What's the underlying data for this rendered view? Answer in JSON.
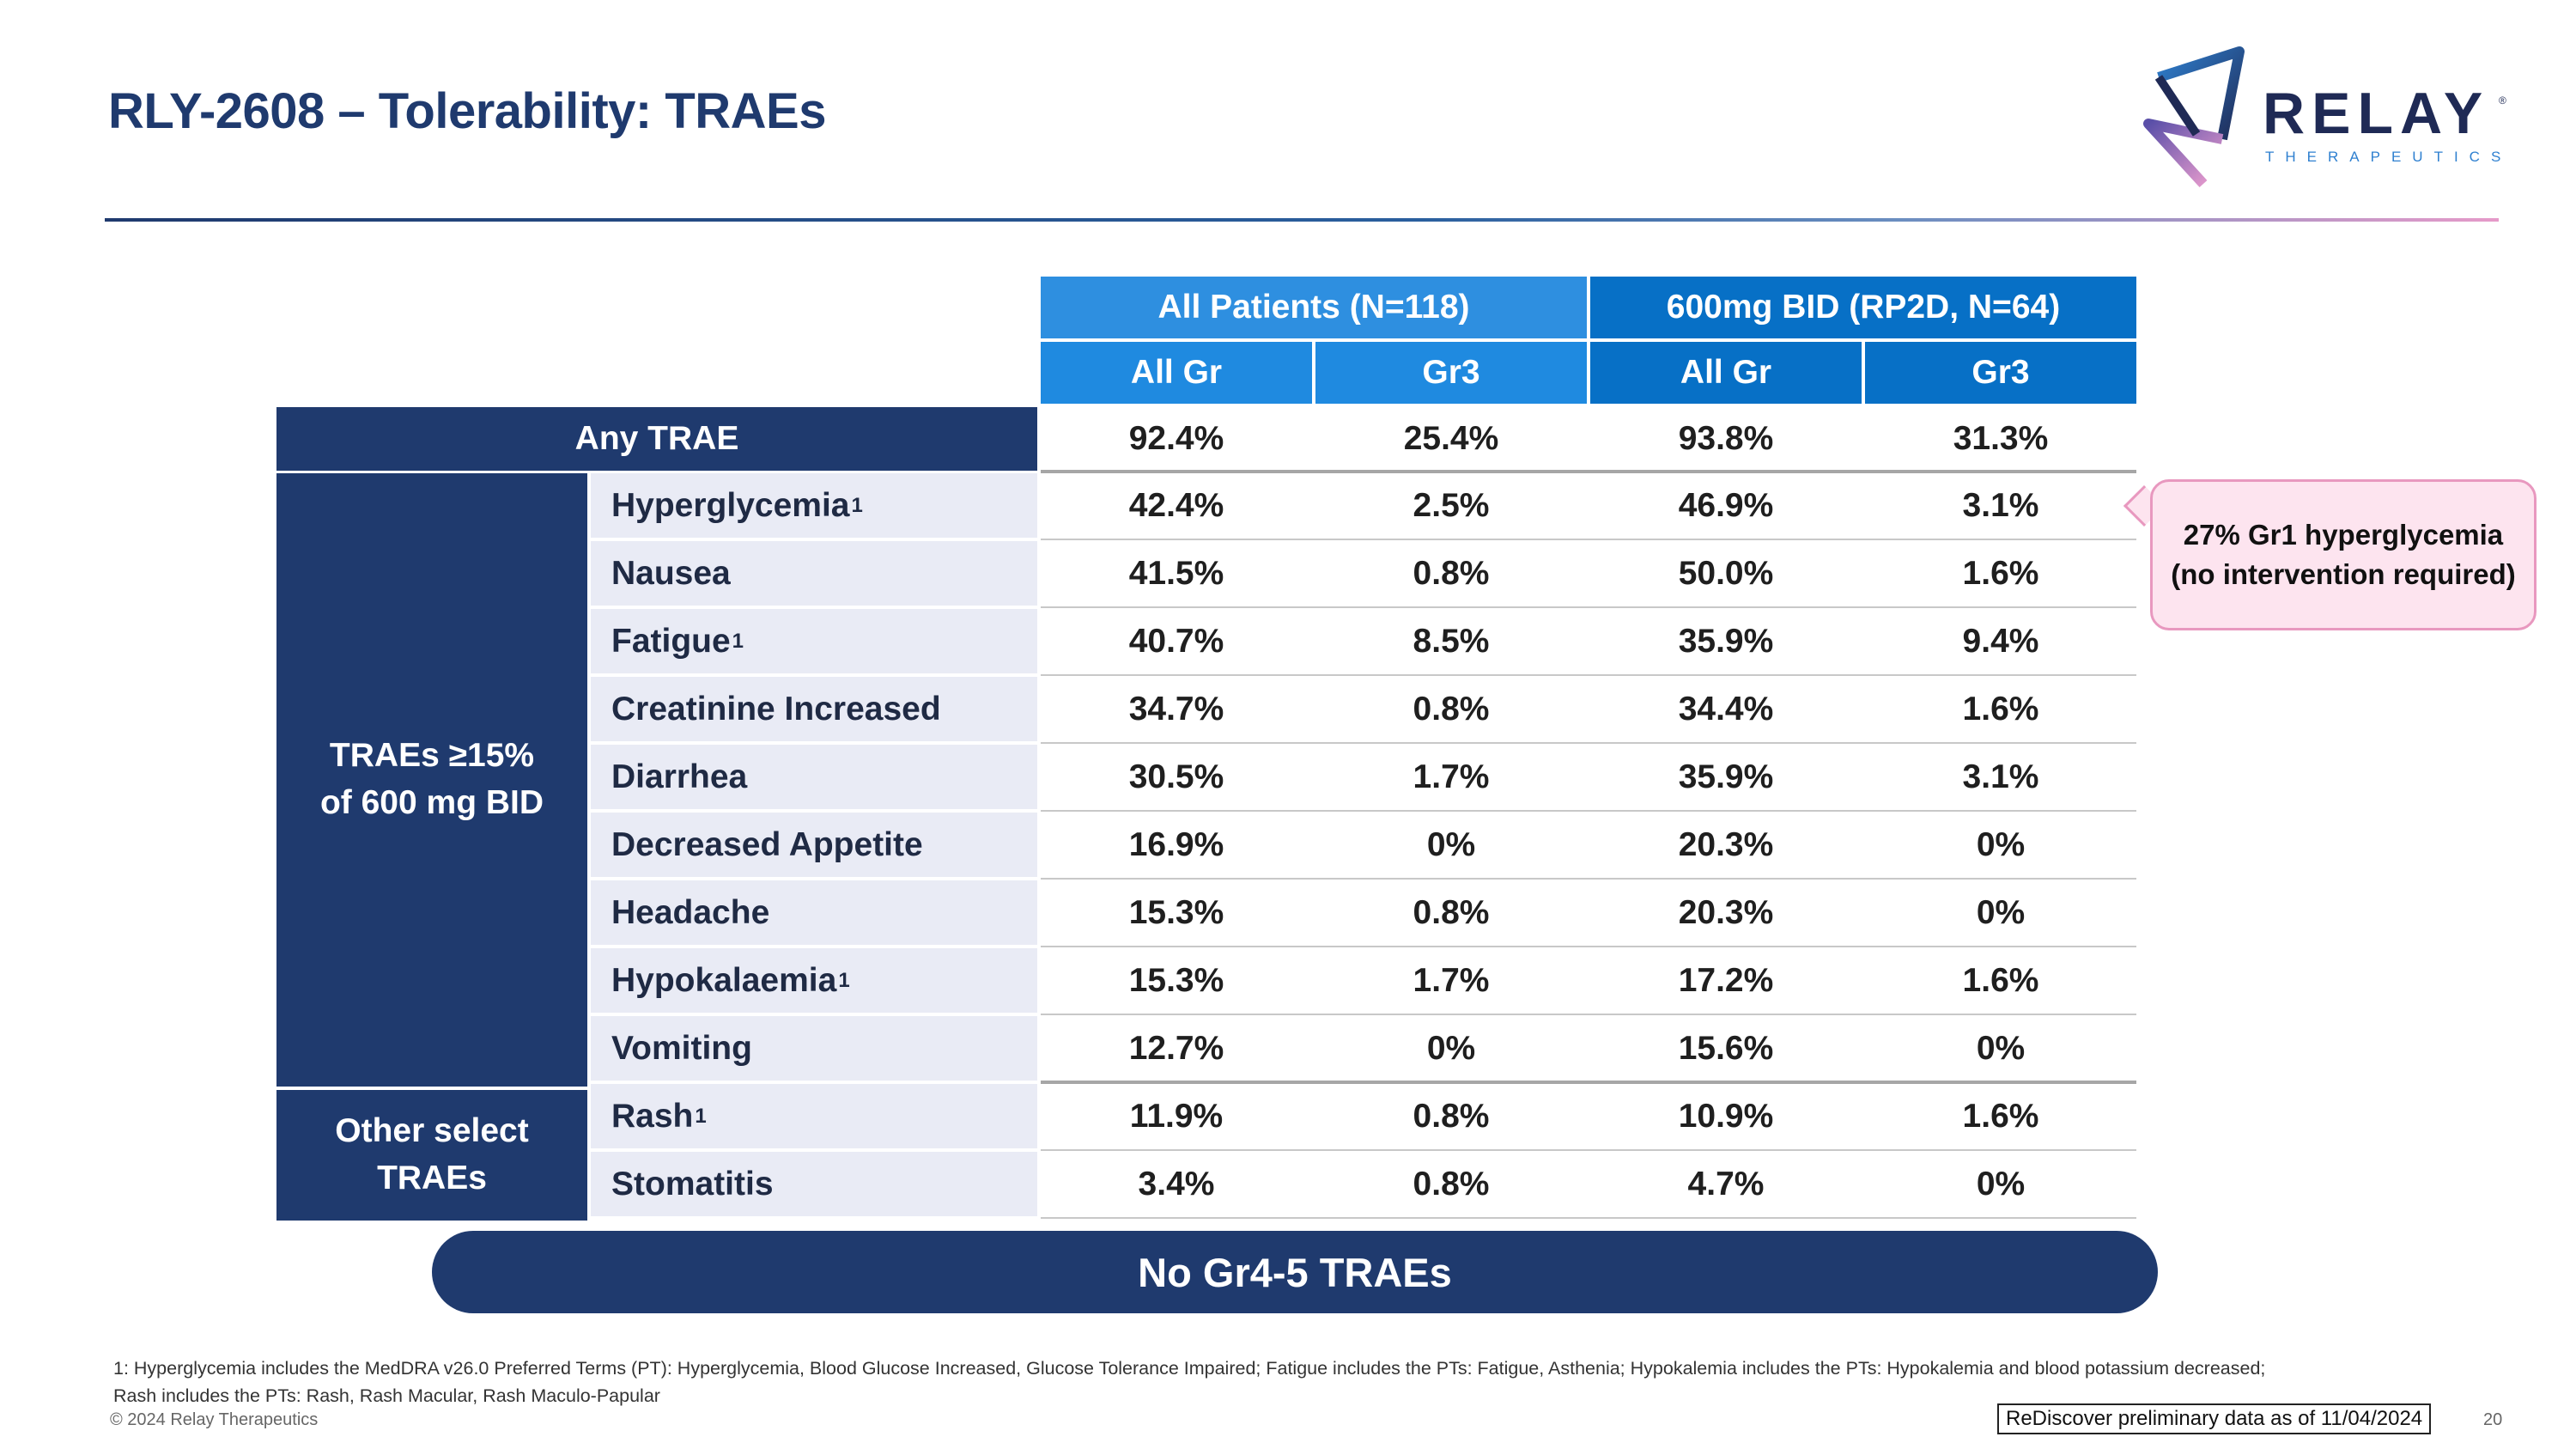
{
  "slide": {
    "title": "RLY-2608 – Tolerability: TRAEs"
  },
  "logo": {
    "word": "RELAY",
    "sub": "THERAPEUTICS",
    "reg": "®"
  },
  "table": {
    "group_headers": [
      "All Patients (N=118)",
      "600mg BID (RP2D, N=64)"
    ],
    "sub_headers": [
      "All Gr",
      "Gr3",
      "All Gr",
      "Gr3"
    ],
    "any_trae": {
      "label": "Any TRAE",
      "values": [
        "92.4%",
        "25.4%",
        "93.8%",
        "31.3%"
      ]
    },
    "group1_label": [
      "TRAEs ≥15%",
      "of 600 mg BID"
    ],
    "group2_label": [
      "Other select",
      "TRAEs"
    ],
    "rows": [
      {
        "label": "Hyperglycemia",
        "sup": "1",
        "values": [
          "42.4%",
          "2.5%",
          "46.9%",
          "3.1%"
        ]
      },
      {
        "label": "Nausea",
        "sup": "",
        "values": [
          "41.5%",
          "0.8%",
          "50.0%",
          "1.6%"
        ]
      },
      {
        "label": "Fatigue",
        "sup": "1",
        "values": [
          "40.7%",
          "8.5%",
          "35.9%",
          "9.4%"
        ]
      },
      {
        "label": "Creatinine Increased",
        "sup": "",
        "values": [
          "34.7%",
          "0.8%",
          "34.4%",
          "1.6%"
        ]
      },
      {
        "label": "Diarrhea",
        "sup": "",
        "values": [
          "30.5%",
          "1.7%",
          "35.9%",
          "3.1%"
        ]
      },
      {
        "label": "Decreased Appetite",
        "sup": "",
        "values": [
          "16.9%",
          "0%",
          "20.3%",
          "0%"
        ]
      },
      {
        "label": "Headache",
        "sup": "",
        "values": [
          "15.3%",
          "0.8%",
          "20.3%",
          "0%"
        ]
      },
      {
        "label": "Hypokalaemia",
        "sup": "1",
        "values": [
          "15.3%",
          "1.7%",
          "17.2%",
          "1.6%"
        ]
      },
      {
        "label": "Vomiting",
        "sup": "",
        "values": [
          "12.7%",
          "0%",
          "15.6%",
          "0%"
        ]
      },
      {
        "label": "Rash",
        "sup": "1",
        "values": [
          "11.9%",
          "0.8%",
          "10.9%",
          "1.6%"
        ]
      },
      {
        "label": "Stomatitis",
        "sup": "",
        "values": [
          "3.4%",
          "0.8%",
          "4.7%",
          "0%"
        ]
      }
    ]
  },
  "callout": {
    "line1": "27% Gr1 hyperglycemia",
    "line2": "(no intervention required)"
  },
  "banner": {
    "text": "No Gr4-5 TRAEs"
  },
  "footer": {
    "footnote_line1": "1: Hyperglycemia includes the MedDRA v26.0 Preferred Terms (PT): Hyperglycemia, Blood Glucose Increased, Glucose Tolerance Impaired; Fatigue includes the PTs: Fatigue, Asthenia; Hypokalemia includes the PTs: Hypokalemia and blood potassium decreased;",
    "footnote_line2": "Rash includes the PTs: Rash, Rash Macular, Rash Maculo-Papular",
    "copyright": "© 2024 Relay Therapeutics",
    "data_note": "ReDiscover preliminary data as of 11/04/2024",
    "page_number": "20"
  },
  "colors": {
    "navy": "#1f3a6e",
    "header_light_blue": "#2e8fe0",
    "header_dark_blue": "#0770c6",
    "row_label_bg": "#e9ebf5",
    "callout_bg": "#fde4ef",
    "callout_border": "#e898bf"
  }
}
